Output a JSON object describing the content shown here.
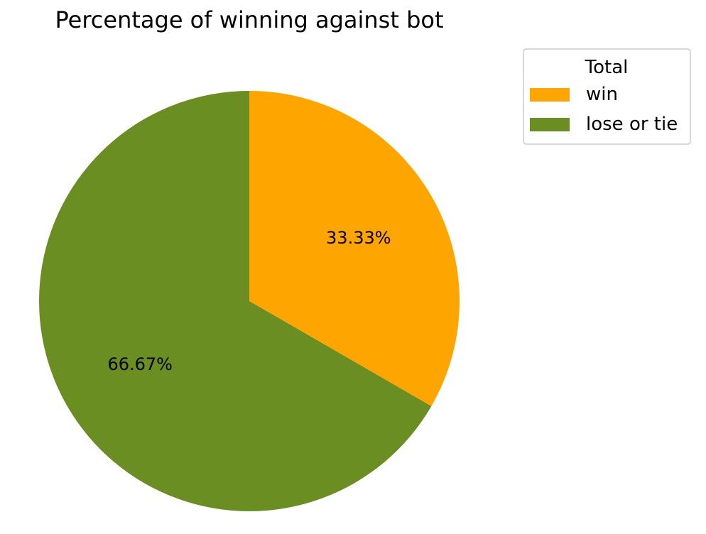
{
  "chart_data": {
    "type": "pie",
    "title": "Percentage of winning against bot",
    "categories": [
      "win",
      "lose or tie"
    ],
    "values": [
      33.33,
      66.67
    ],
    "value_labels": [
      "33.33%",
      "66.67%"
    ],
    "colors": [
      "#ffa500",
      "#6b8e23"
    ],
    "start_angle": 90,
    "direction": "clockwise",
    "legend": {
      "title": "Total",
      "placement": "top-right outside"
    }
  }
}
